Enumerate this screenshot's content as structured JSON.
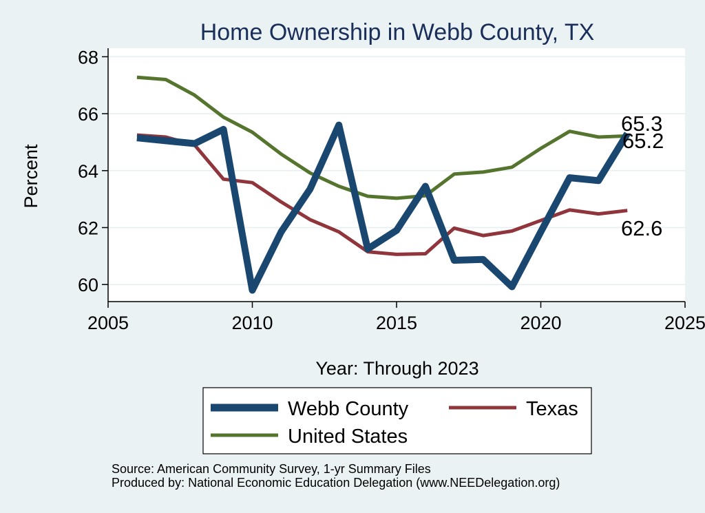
{
  "chart_data": {
    "type": "line",
    "title": "Home Ownership in Webb County, TX",
    "xlabel": "Year: Through 2023",
    "ylabel": "Percent",
    "xlim": [
      2005,
      2025
    ],
    "ylim": [
      59.4,
      68.3
    ],
    "xticks": [
      2005,
      2010,
      2015,
      2020,
      2025
    ],
    "yticks": [
      60,
      62,
      64,
      66,
      68
    ],
    "x": [
      2006,
      2007,
      2008,
      2009,
      2010,
      2011,
      2012,
      2013,
      2014,
      2015,
      2016,
      2017,
      2018,
      2019,
      2020,
      2021,
      2022,
      2023
    ],
    "series": [
      {
        "name": "Webb County",
        "color": "#1a476f",
        "values": [
          65.15,
          65.05,
          64.95,
          65.45,
          59.8,
          61.85,
          63.35,
          65.6,
          61.25,
          61.9,
          63.45,
          60.85,
          60.88,
          59.92,
          61.85,
          63.75,
          63.65,
          65.3
        ]
      },
      {
        "name": "Texas",
        "color": "#90353b",
        "values": [
          65.25,
          65.18,
          64.9,
          63.7,
          63.58,
          62.9,
          62.28,
          61.85,
          61.15,
          61.06,
          61.08,
          61.98,
          61.72,
          61.88,
          62.25,
          62.62,
          62.48,
          62.6
        ]
      },
      {
        "name": "United States",
        "color": "#55752f",
        "values": [
          67.28,
          67.2,
          66.65,
          65.88,
          65.35,
          64.58,
          63.92,
          63.45,
          63.1,
          63.03,
          63.12,
          63.88,
          63.95,
          64.12,
          64.78,
          65.38,
          65.18,
          65.22
        ]
      }
    ],
    "end_labels": [
      "65.3",
      "65.2",
      "62.6"
    ],
    "legend": {
      "position": "bottom",
      "order": [
        "Webb County",
        "Texas",
        "United States"
      ]
    },
    "grid": true
  },
  "footnote": {
    "source": "Source: American Community Survey, 1-yr Summary Files",
    "produced_by": "Produced by: National Economic Education Delegation (www.NEEDelegation.org)"
  }
}
